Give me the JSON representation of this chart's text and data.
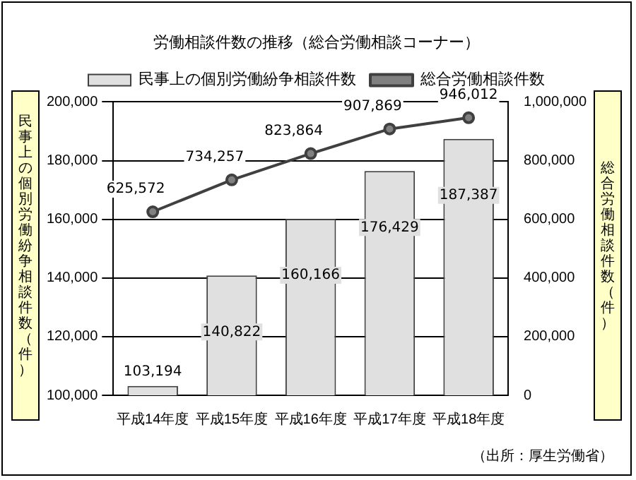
{
  "chart_data": {
    "type": "bar",
    "title": "労働相談件数の推移（総合労働相談コーナー）",
    "ylabel": "民事上の個別労働紛争相談件数（件）",
    "y2label": "総合労働相談件数（件）",
    "categories": [
      "平成14年度",
      "平成15年度",
      "平成16年度",
      "平成17年度",
      "平成18年度"
    ],
    "series": [
      {
        "name": "民事上の個別労働紛争相談件数",
        "color": "#e0e0e0",
        "values": [
          103194,
          140822,
          160166,
          176429,
          187387
        ],
        "value_labels": [
          "103,194",
          "140,822",
          "160,166",
          "176,429",
          "187,387"
        ]
      },
      {
        "name": "総合労働相談件数",
        "type": "line",
        "axis": "y2",
        "color": "#404040",
        "marker": "circle",
        "values": [
          625572,
          734257,
          823864,
          907869,
          946012
        ],
        "value_labels": [
          "625,572",
          "734,257",
          "823,864",
          "907,869",
          "946,012"
        ]
      }
    ],
    "ylim": [
      100000,
      200000
    ],
    "yticks": [
      {
        "value": 100000,
        "label": "100,000"
      },
      {
        "value": 120000,
        "label": "120,000"
      },
      {
        "value": 140000,
        "label": "140,000"
      },
      {
        "value": 160000,
        "label": "160,000"
      },
      {
        "value": 180000,
        "label": "180,000"
      },
      {
        "value": 200000,
        "label": "200,000"
      }
    ],
    "y2lim": [
      0,
      1000000
    ],
    "y2ticks": [
      0,
      {
        "value": 200000,
        "label": "200,000"
      },
      {
        "value": 400000,
        "label": "400,000"
      },
      {
        "value": 600000,
        "label": "600,000"
      },
      {
        "value": 800000,
        "label": "800,000"
      },
      {
        "value": 1000000,
        "label": "1,000,000"
      }
    ],
    "grid": "y",
    "legend": "top",
    "annotations": [
      "（出所：厚生労働省）"
    ]
  }
}
